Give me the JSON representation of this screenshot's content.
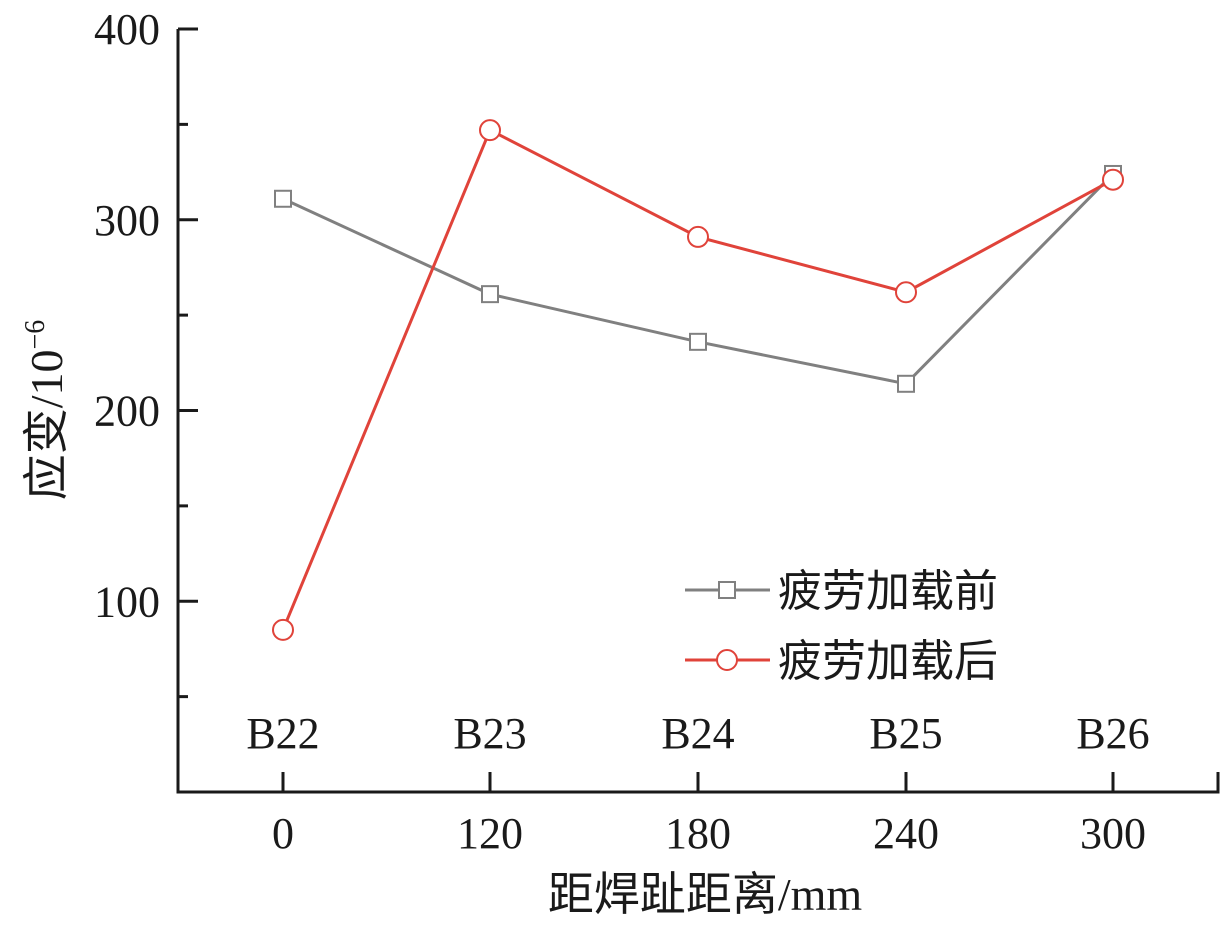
{
  "chart_data": {
    "type": "line",
    "categories": [
      "0",
      "120",
      "180",
      "240",
      "300"
    ],
    "category_labels": [
      "B22",
      "B23",
      "B24",
      "B25",
      "B26"
    ],
    "xlabel": "距焊趾距离/mm",
    "ylabel": "应变/10",
    "ylabel_exponent": "−6",
    "ylim": [
      0,
      400
    ],
    "yticks": [
      100,
      200,
      300,
      400
    ],
    "yticks_labels": [
      "100",
      "200",
      "300",
      "400"
    ],
    "grid": false,
    "legend_position": "bottom-right",
    "series": [
      {
        "name": "疲劳加载前",
        "values": [
          311,
          261,
          236,
          214,
          324
        ],
        "color": "#808080",
        "marker": "square"
      },
      {
        "name": "疲劳加载后",
        "values": [
          85,
          347,
          291,
          262,
          321
        ],
        "color": "#e0433a",
        "marker": "circle"
      }
    ]
  }
}
